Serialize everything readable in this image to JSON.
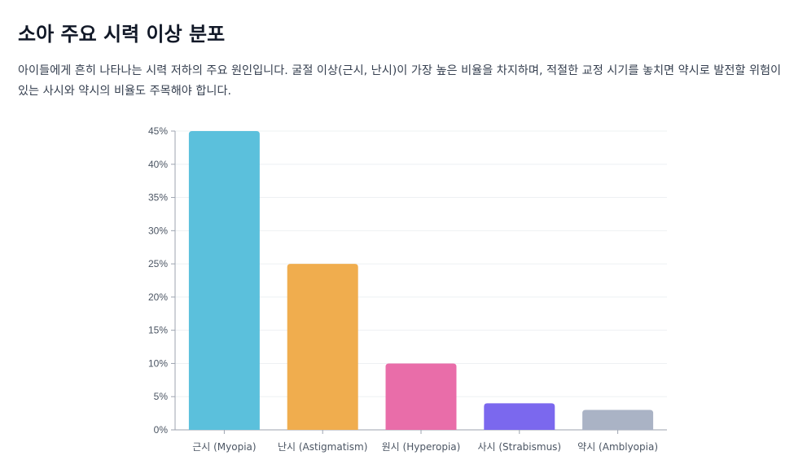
{
  "page": {
    "title": "소아 주요 시력 이상 분포",
    "description": "아이들에게 흔히 나타나는 시력 저하의 주요 원인입니다. 굴절 이상(근시, 난시)이 가장 높은 비율을 차지하며, 적절한 교정 시기를 놓치면 약시로 발전할 위험이 있는 사시와 약시의 비율도 주목해야 합니다."
  },
  "chart_data": {
    "type": "bar",
    "title": "",
    "xlabel": "",
    "ylabel": "",
    "categories": [
      "근시 (Myopia)",
      "난시 (Astigmatism)",
      "원시 (Hyperopia)",
      "사시 (Strabismus)",
      "약시 (Amblyopia)"
    ],
    "values": [
      45,
      25,
      10,
      4,
      3
    ],
    "colors": [
      "#5bc0dc",
      "#f0ad4e",
      "#e96da9",
      "#7b68ee",
      "#aab3c5"
    ],
    "ylim": [
      0,
      45
    ],
    "yticks": [
      0,
      5,
      10,
      15,
      20,
      25,
      30,
      35,
      40,
      45
    ],
    "ytick_labels": [
      "0%",
      "5%",
      "10%",
      "15%",
      "20%",
      "25%",
      "30%",
      "35%",
      "40%",
      "45%"
    ],
    "grid": true,
    "legend": "none"
  }
}
